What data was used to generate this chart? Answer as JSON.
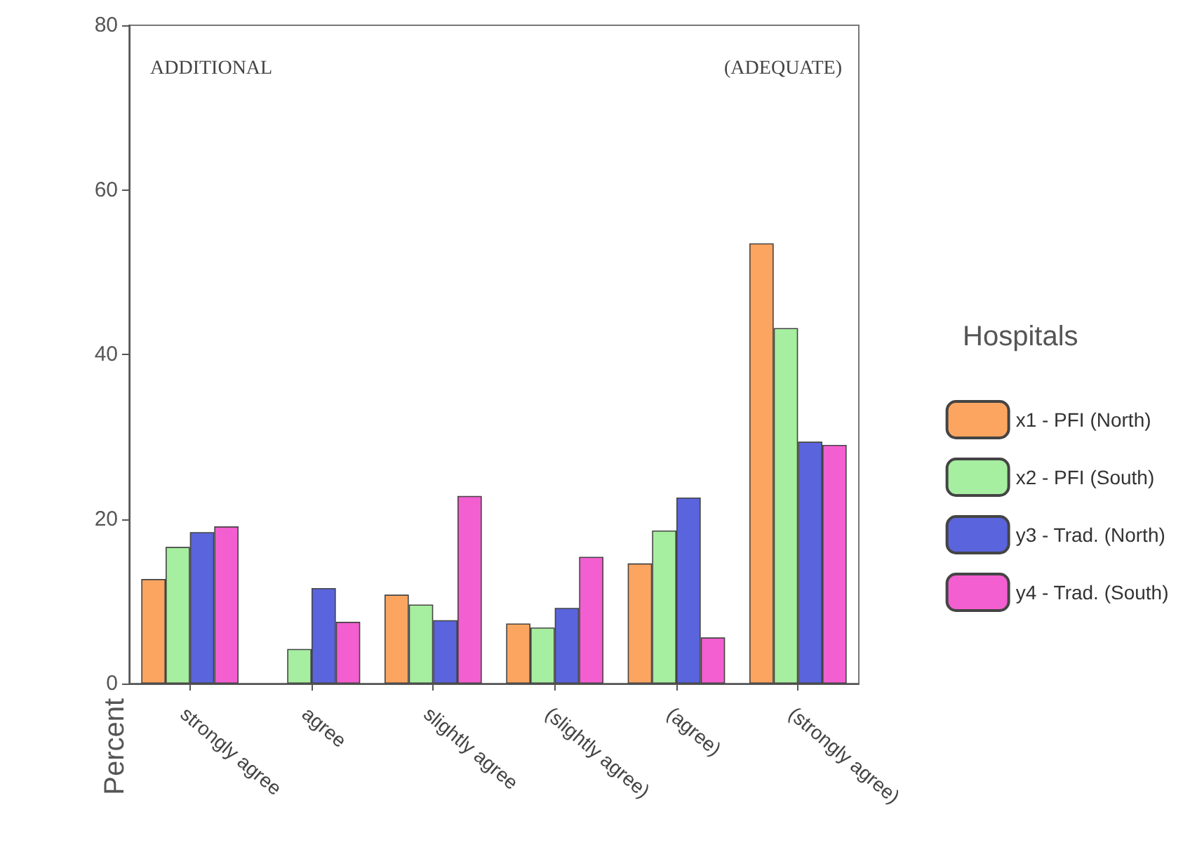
{
  "chart_data": {
    "type": "bar",
    "ylabel": "Percent",
    "legend_title": "Hospitals",
    "legend": "right",
    "grid": false,
    "categories": [
      "strongly agree",
      "agree",
      "slightly agree",
      "(slightly agree)",
      "(agree)",
      "(strongly agree)"
    ],
    "ylim": [
      0,
      80
    ],
    "yticks": [
      0,
      20,
      40,
      60,
      80
    ],
    "annotations": [
      "ADDITIONAL",
      "(ADEQUATE)"
    ],
    "series": [
      {
        "name": "x1 - PFI (North)",
        "color": "#fca560",
        "values": [
          12.7,
          null,
          10.8,
          7.3,
          14.6,
          53.5
        ]
      },
      {
        "name": "x2 - PFI (South)",
        "color": "#a6eea0",
        "values": [
          16.6,
          4.2,
          9.6,
          6.8,
          18.6,
          43.2
        ]
      },
      {
        "name": "y3 - Trad. (North)",
        "color": "#5a64dc",
        "values": [
          18.4,
          11.6,
          7.7,
          9.2,
          22.6,
          29.4
        ]
      },
      {
        "name": "y4 - Trad. (South)",
        "color": "#f35ed0",
        "values": [
          19.1,
          7.5,
          22.8,
          15.4,
          5.6,
          29
        ]
      }
    ]
  }
}
